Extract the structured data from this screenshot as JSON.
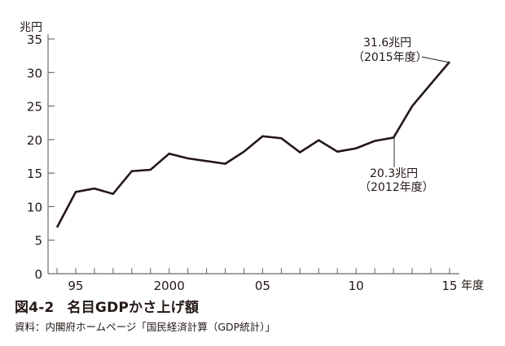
{
  "chart_data": {
    "type": "line",
    "title": "名目GDPかさ上げ額",
    "figure_number": "図4-2",
    "source": "資料：内閣府ホームページ「国民経済計算（GDP統計）」",
    "ylabel": "兆円",
    "xlabel": "年度",
    "ylim": [
      0,
      35
    ],
    "yticks": [
      0,
      5,
      10,
      15,
      20,
      25,
      30,
      35
    ],
    "xlim": [
      1994,
      2015
    ],
    "xtick_labels": [
      {
        "year": 1995,
        "label": "95"
      },
      {
        "year": 2000,
        "label": "2000"
      },
      {
        "year": 2005,
        "label": "05"
      },
      {
        "year": 2010,
        "label": "10"
      },
      {
        "year": 2015,
        "label": "15"
      }
    ],
    "grid": false,
    "legend": null,
    "x": [
      1994,
      1995,
      1996,
      1997,
      1998,
      1999,
      2000,
      2001,
      2002,
      2003,
      2004,
      2005,
      2006,
      2007,
      2008,
      2009,
      2010,
      2011,
      2012,
      2013,
      2014,
      2015
    ],
    "series": [
      {
        "name": "名目GDPかさ上げ額",
        "values": [
          6.9,
          12.2,
          12.7,
          11.9,
          15.3,
          15.5,
          17.9,
          17.2,
          16.8,
          16.4,
          18.2,
          20.5,
          20.2,
          18.1,
          19.9,
          18.2,
          18.7,
          19.8,
          20.3,
          25.0,
          28.3,
          31.6
        ]
      }
    ],
    "annotations": [
      {
        "year": 2015,
        "value": 31.6,
        "line1": "31.6兆円",
        "line2": "（2015年度）"
      },
      {
        "year": 2012,
        "value": 20.3,
        "line1": "20.3兆円",
        "line2": "（2012年度）"
      }
    ]
  },
  "labels": {
    "y_unit": "兆円",
    "x_unit": "年度",
    "figure_number": "図4-2",
    "title": "名目GDPかさ上げ額",
    "source": "資料：内閣府ホームページ「国民経済計算（GDP統計）」",
    "annot_2015_line1": "31.6兆円",
    "annot_2015_line2": "（2015年度）",
    "annot_2012_line1": "20.3兆円",
    "annot_2012_line2": "（2012年度）"
  },
  "colors": {
    "line": "#231815",
    "axis": "#6e6e6e",
    "text": "#231815"
  }
}
